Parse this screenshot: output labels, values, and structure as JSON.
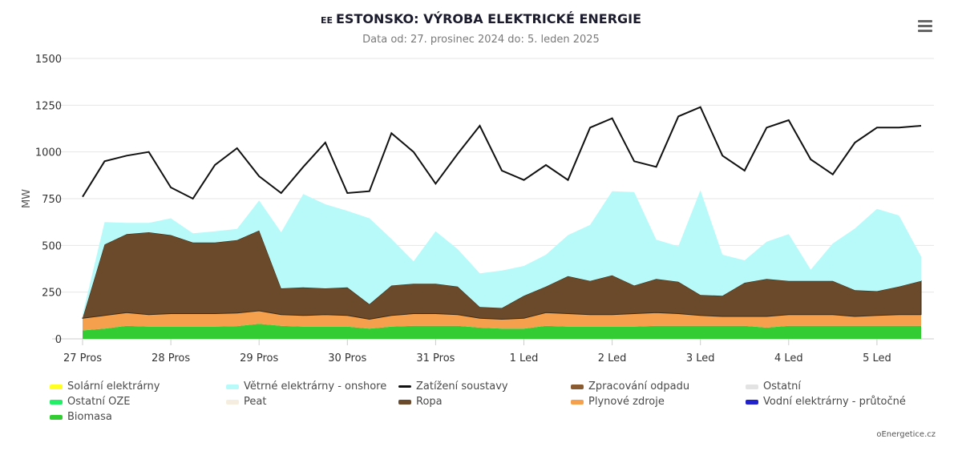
{
  "header": {
    "country_code": "EE",
    "title": "ESTONSKO: VÝROBA ELEKTRICKÉ ENERGIE",
    "subtitle": "Data od: 27. prosinec 2024 do: 5. leden 2025",
    "menu_icon": "hamburger-menu-icon"
  },
  "credit": "oEnergetice.cz",
  "chart_data": {
    "type": "area",
    "stacked": true,
    "ylabel": "MW",
    "ylim": [
      0,
      1500
    ],
    "yticks": [
      "0",
      "250",
      "500",
      "750",
      "1000",
      "1250",
      "1500"
    ],
    "xticks": [
      "27 Pros",
      "28 Pros",
      "29 Pros",
      "30 Pros",
      "31 Pros",
      "1 Led",
      "2 Led",
      "3 Led",
      "4 Led",
      "5 Led"
    ],
    "grid": true,
    "legend_position": "bottom",
    "x_day": [
      0,
      0.25,
      0.5,
      0.75,
      1,
      1.25,
      1.5,
      1.75,
      2,
      2.25,
      2.5,
      2.75,
      3,
      3.25,
      3.5,
      3.75,
      4,
      4.25,
      4.5,
      4.75,
      5,
      5.25,
      5.5,
      5.75,
      6,
      6.25,
      6.5,
      6.75,
      7,
      7.25,
      7.5,
      7.75,
      8,
      8.25,
      8.5,
      8.75,
      9,
      9.25,
      9.5
    ],
    "series": [
      {
        "name": "Biomasa",
        "color": "#33cc33",
        "values": [
          45,
          55,
          70,
          65,
          65,
          65,
          65,
          68,
          80,
          70,
          65,
          65,
          65,
          55,
          65,
          70,
          70,
          70,
          60,
          55,
          55,
          70,
          65,
          65,
          65,
          65,
          70,
          70,
          70,
          70,
          70,
          60,
          70,
          70,
          70,
          70,
          70,
          70,
          70
        ]
      },
      {
        "name": "Ostatní OZE",
        "color": "#22ee66",
        "values": [
          0,
          0,
          0,
          0,
          0,
          0,
          0,
          0,
          0,
          0,
          0,
          0,
          0,
          0,
          0,
          0,
          0,
          0,
          0,
          0,
          0,
          0,
          0,
          0,
          0,
          0,
          0,
          0,
          0,
          0,
          0,
          0,
          0,
          0,
          0,
          0,
          0,
          0,
          0
        ]
      },
      {
        "name": "Plynové zdroje",
        "color": "#f5a04c",
        "values": [
          65,
          70,
          70,
          65,
          70,
          70,
          70,
          70,
          70,
          60,
          60,
          65,
          60,
          50,
          60,
          65,
          65,
          60,
          50,
          50,
          55,
          70,
          70,
          65,
          65,
          70,
          70,
          65,
          55,
          50,
          50,
          60,
          60,
          60,
          60,
          50,
          55,
          60,
          60
        ]
      },
      {
        "name": "Ropa",
        "color": "#6b4a2b",
        "values": [
          0,
          380,
          420,
          440,
          420,
          380,
          380,
          390,
          430,
          140,
          150,
          140,
          150,
          80,
          160,
          160,
          160,
          150,
          60,
          60,
          120,
          140,
          200,
          180,
          210,
          150,
          180,
          170,
          110,
          110,
          180,
          200,
          180,
          180,
          180,
          140,
          130,
          150,
          180
        ]
      },
      {
        "name": "Zpracování odpadu",
        "color": "#8a5a30",
        "values": [
          0,
          0,
          0,
          0,
          0,
          0,
          0,
          0,
          0,
          0,
          0,
          0,
          0,
          0,
          0,
          0,
          0,
          0,
          0,
          0,
          0,
          0,
          0,
          0,
          0,
          0,
          0,
          0,
          0,
          0,
          0,
          0,
          0,
          0,
          0,
          0,
          0,
          0,
          0
        ]
      },
      {
        "name": "Vodní elektrárny - průtočné",
        "color": "#2222cc",
        "values": [
          0,
          0,
          0,
          0,
          0,
          0,
          0,
          0,
          0,
          0,
          0,
          0,
          0,
          0,
          0,
          0,
          0,
          0,
          0,
          0,
          0,
          0,
          0,
          0,
          0,
          0,
          0,
          0,
          0,
          0,
          0,
          0,
          0,
          0,
          0,
          0,
          0,
          0,
          0
        ]
      },
      {
        "name": "Peat",
        "color": "#f5eee0",
        "values": [
          0,
          0,
          0,
          0,
          0,
          0,
          0,
          0,
          0,
          0,
          0,
          0,
          0,
          0,
          0,
          0,
          0,
          0,
          0,
          0,
          0,
          0,
          0,
          0,
          0,
          0,
          0,
          0,
          0,
          0,
          0,
          0,
          0,
          0,
          0,
          0,
          0,
          0,
          0
        ]
      },
      {
        "name": "Ostatní",
        "color": "#e3e3e3",
        "values": [
          0,
          0,
          0,
          0,
          0,
          0,
          0,
          0,
          0,
          0,
          0,
          0,
          0,
          0,
          0,
          0,
          0,
          0,
          0,
          0,
          0,
          0,
          0,
          0,
          0,
          0,
          0,
          0,
          0,
          0,
          0,
          0,
          0,
          0,
          0,
          0,
          0,
          0,
          0
        ]
      },
      {
        "name": "Větrné elektrárny - onshore",
        "color": "#b8fafa",
        "values": [
          20,
          120,
          60,
          50,
          90,
          50,
          60,
          60,
          160,
          300,
          500,
          450,
          410,
          460,
          250,
          120,
          280,
          200,
          180,
          200,
          160,
          170,
          220,
          300,
          450,
          500,
          210,
          190,
          560,
          220,
          120,
          200,
          250,
          60,
          200,
          330,
          440,
          380,
          130
        ]
      },
      {
        "name": "Solární elektrárny",
        "color": "#ffff22",
        "values": [
          0,
          0,
          0,
          0,
          0,
          0,
          0,
          0,
          0,
          0,
          0,
          0,
          0,
          0,
          0,
          0,
          0,
          0,
          0,
          0,
          0,
          0,
          0,
          0,
          0,
          0,
          0,
          0,
          0,
          0,
          0,
          0,
          0,
          0,
          0,
          0,
          0,
          0,
          0
        ]
      }
    ],
    "load": {
      "name": "Zatížení soustavy",
      "color": "#111111",
      "values": [
        760,
        950,
        980,
        1000,
        810,
        750,
        930,
        1020,
        870,
        780,
        920,
        1050,
        780,
        790,
        1100,
        1000,
        830,
        990,
        1140,
        900,
        850,
        930,
        850,
        1130,
        1180,
        950,
        920,
        1190,
        1240,
        980,
        900,
        1130,
        1170,
        960,
        880,
        1050,
        1130,
        1130,
        1140
      ]
    }
  },
  "legend": [
    {
      "label": "Solární elektrárny",
      "color": "#ffff22",
      "kind": "area"
    },
    {
      "label": "Větrné elektrárny - onshore",
      "color": "#b8fafa",
      "kind": "area"
    },
    {
      "label": "Zatížení soustavy",
      "color": "#111111",
      "kind": "line"
    },
    {
      "label": "Zpracování odpadu",
      "color": "#8a5a30",
      "kind": "area"
    },
    {
      "label": "Ostatní",
      "color": "#e3e3e3",
      "kind": "area"
    },
    {
      "label": "Ostatní OZE",
      "color": "#22ee66",
      "kind": "area"
    },
    {
      "label": "Peat",
      "color": "#f5eee0",
      "kind": "area"
    },
    {
      "label": "Ropa",
      "color": "#6b4a2b",
      "kind": "area"
    },
    {
      "label": "Plynové zdroje",
      "color": "#f5a04c",
      "kind": "area"
    },
    {
      "label": "Vodní elektrárny - průtočné",
      "color": "#2222cc",
      "kind": "area"
    },
    {
      "label": "Biomasa",
      "color": "#33cc33",
      "kind": "area"
    }
  ]
}
